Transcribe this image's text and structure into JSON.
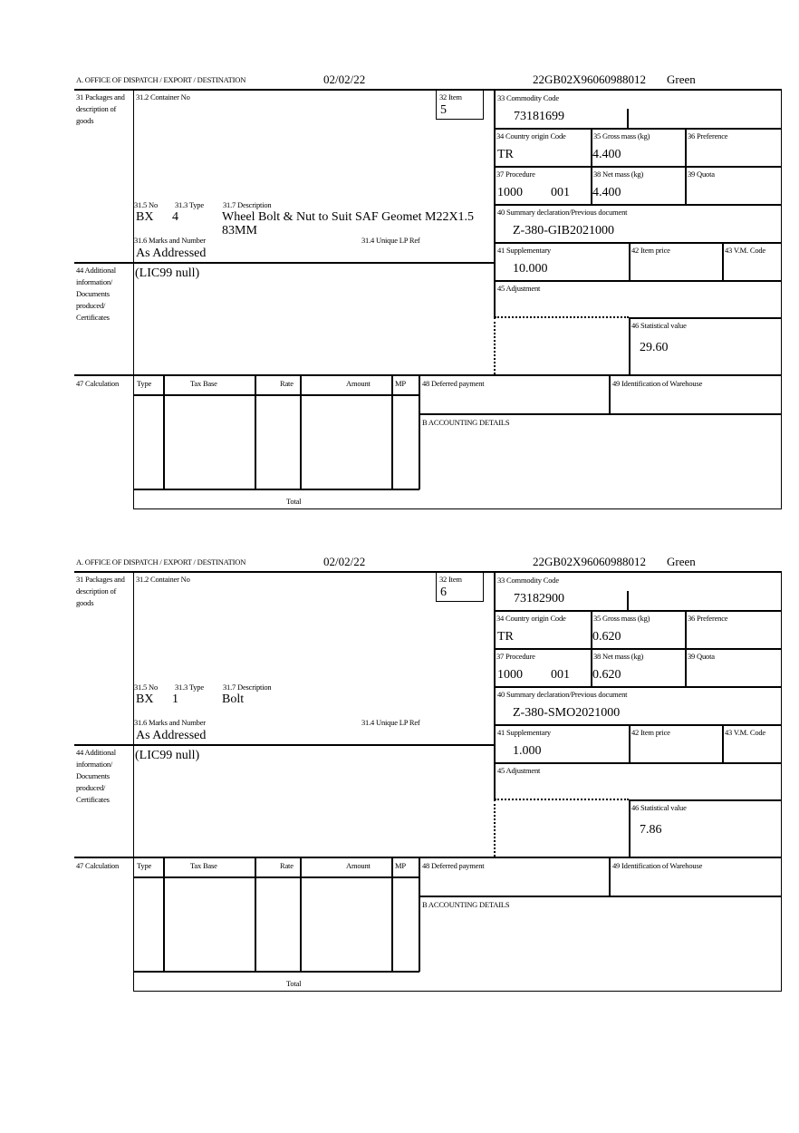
{
  "labels": {
    "office": "A. OFFICE OF DISPATCH / EXPORT / DESTINATION",
    "b31": "31 Packages and description of goods",
    "b31_2": "31.2 Container No",
    "b32": "32 Item",
    "b31_5": "31.5 No",
    "b31_3": "31.3 Type",
    "b31_7": "31.7 Description",
    "b31_6": "31.6 Marks and Number",
    "b31_4": "31.4 Unique LP Ref",
    "b33": "33 Commodity Code",
    "b34": "34 Country origin Code",
    "b35": "35 Gross mass (kg)",
    "b36": "36 Preference",
    "b37": "37 Procedure",
    "b38": "38 Net mass (kg)",
    "b39": "39 Quota",
    "b40": "40 Summary declaration/Previous document",
    "b41": "41 Supplementary",
    "b42": "42 Item price",
    "b43": "43 V.M. Code",
    "b44": "44 Additional information/ Documents produced/ Certificates",
    "b45": "45 Adjustment",
    "b46": "46 Statistical value",
    "b47": "47 Calculation",
    "calc_type": "Type",
    "calc_taxbase": "Tax Base",
    "calc_rate": "Rate",
    "calc_amount": "Amount",
    "calc_mp": "MP",
    "calc_total": "Total",
    "b48": "48 Deferred payment",
    "b49": "49 Identification of Warehouse",
    "accounting": "B ACCOUNTING DETAILS"
  },
  "forms": [
    {
      "date": "02/02/22",
      "mrn": "22GB02X96060988012",
      "route": "Green",
      "item": "5",
      "pkg_kind": "BX",
      "pkg_count": "4",
      "description": "Wheel Bolt & Nut to Suit SAF Geomet M22X1.5 83MM",
      "marks": "As Addressed",
      "additional_info": "(LIC99 null)",
      "commodity_code": "73181699",
      "country_origin": "TR",
      "gross_mass": "4.400",
      "procedure": "1000",
      "procedure_extra": "001",
      "net_mass": "4.400",
      "previous_document": "Z-380-GIB2021000",
      "supplementary": "10.000",
      "statistical_value": "29.60"
    },
    {
      "date": "02/02/22",
      "mrn": "22GB02X96060988012",
      "route": "Green",
      "item": "6",
      "pkg_kind": "BX",
      "pkg_count": "1",
      "description": "Bolt",
      "marks": "As Addressed",
      "additional_info": "(LIC99 null)",
      "commodity_code": "73182900",
      "country_origin": "TR",
      "gross_mass": "0.620",
      "procedure": "1000",
      "procedure_extra": "001",
      "net_mass": "0.620",
      "previous_document": "Z-380-SMO2021000",
      "supplementary": "1.000",
      "statistical_value": "7.86"
    }
  ]
}
